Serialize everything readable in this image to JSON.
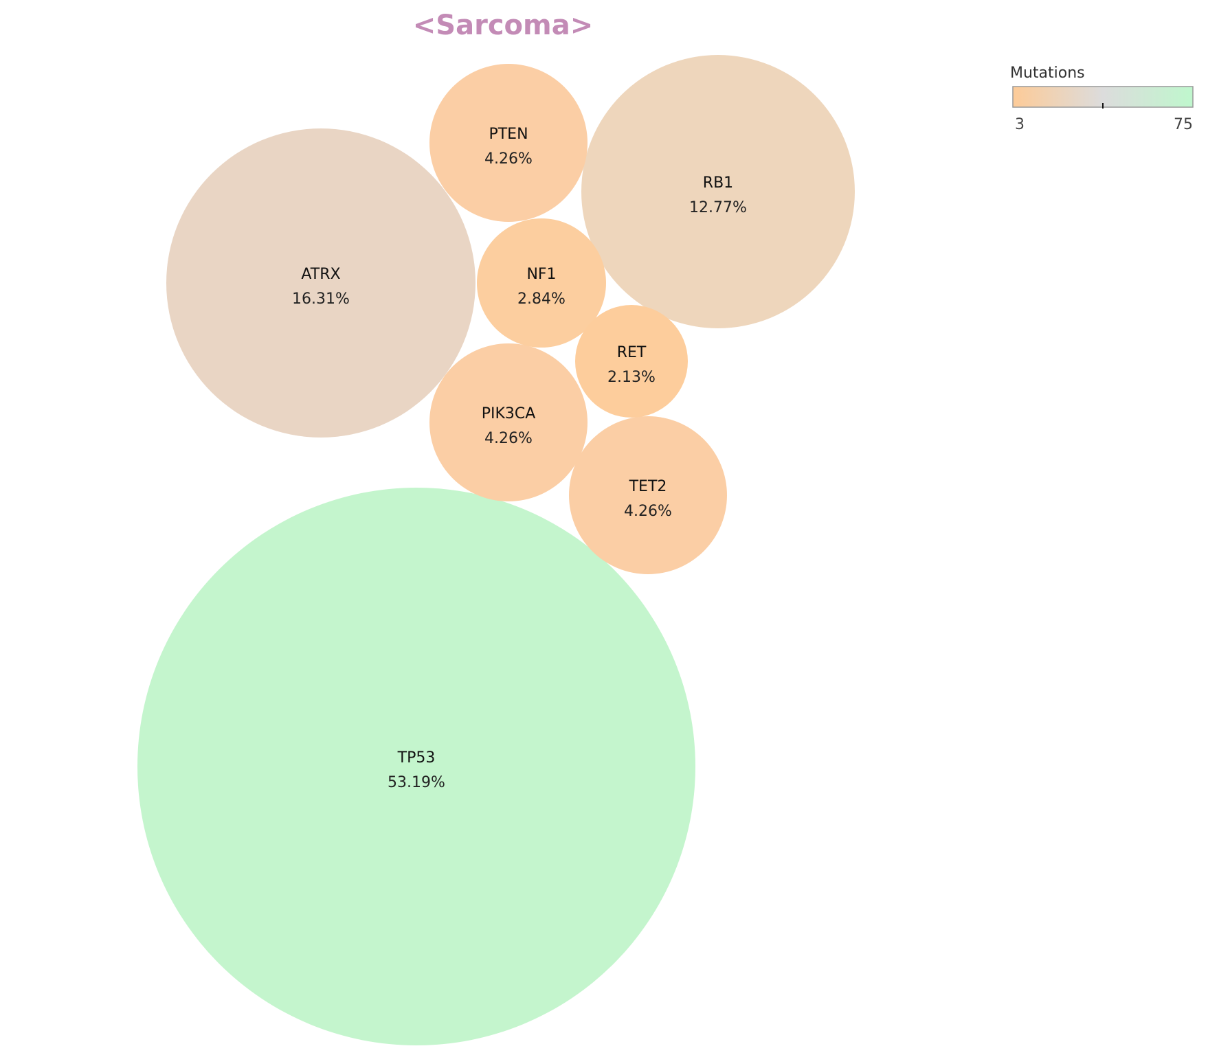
{
  "chart_data": {
    "type": "bubble",
    "title": "<Sarcoma>",
    "title_color": "#c38bb6",
    "bubbles": [
      {
        "name": "TP53",
        "percent": "53.19%",
        "color": "#c4f5cd"
      },
      {
        "name": "ATRX",
        "percent": "16.31%",
        "color": "#e9d5c4"
      },
      {
        "name": "RB1",
        "percent": "12.77%",
        "color": "#eed6bc"
      },
      {
        "name": "PTEN",
        "percent": "4.26%",
        "color": "#fbcea5"
      },
      {
        "name": "PIK3CA",
        "percent": "4.26%",
        "color": "#fbcea5"
      },
      {
        "name": "TET2",
        "percent": "4.26%",
        "color": "#fbcea5"
      },
      {
        "name": "NF1",
        "percent": "2.84%",
        "color": "#fcce9f"
      },
      {
        "name": "RET",
        "percent": "2.13%",
        "color": "#fdcd9c"
      }
    ],
    "colorbar": {
      "title": "Mutations",
      "min_label": "3",
      "max_label": "75",
      "color_low": "#fdcb98",
      "color_mid": "#dcdcdc",
      "color_high": "#bff7cd"
    }
  }
}
